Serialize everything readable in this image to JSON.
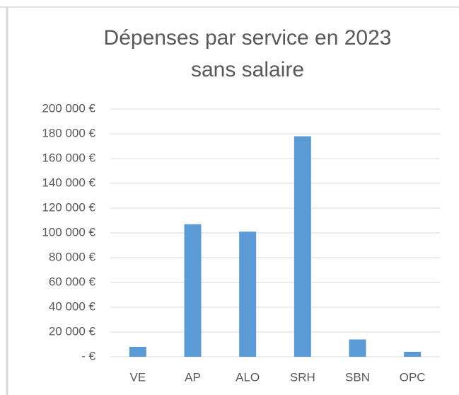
{
  "chart_data": {
    "type": "bar",
    "title": [
      "Dépenses par service en 2023",
      "sans salaire"
    ],
    "categories": [
      "VE",
      "AP",
      "ALO",
      "SRH",
      "SBN",
      "OPC"
    ],
    "values": [
      8000,
      107000,
      101000,
      178000,
      14000,
      4000
    ],
    "color": "#5b9bd5",
    "ylim": [
      0,
      200000
    ],
    "yticks": [
      {
        "value": 0,
        "label": "-  €"
      },
      {
        "value": 20000,
        "label": "20 000 €"
      },
      {
        "value": 40000,
        "label": "40 000 €"
      },
      {
        "value": 60000,
        "label": "60 000 €"
      },
      {
        "value": 80000,
        "label": "80 000 €"
      },
      {
        "value": 100000,
        "label": "100 000 €"
      },
      {
        "value": 120000,
        "label": "120 000 €"
      },
      {
        "value": 140000,
        "label": "140 000 €"
      },
      {
        "value": 160000,
        "label": "160 000 €"
      },
      {
        "value": 180000,
        "label": "180 000 €"
      },
      {
        "value": 200000,
        "label": "200 000 €"
      }
    ],
    "grid": true
  }
}
